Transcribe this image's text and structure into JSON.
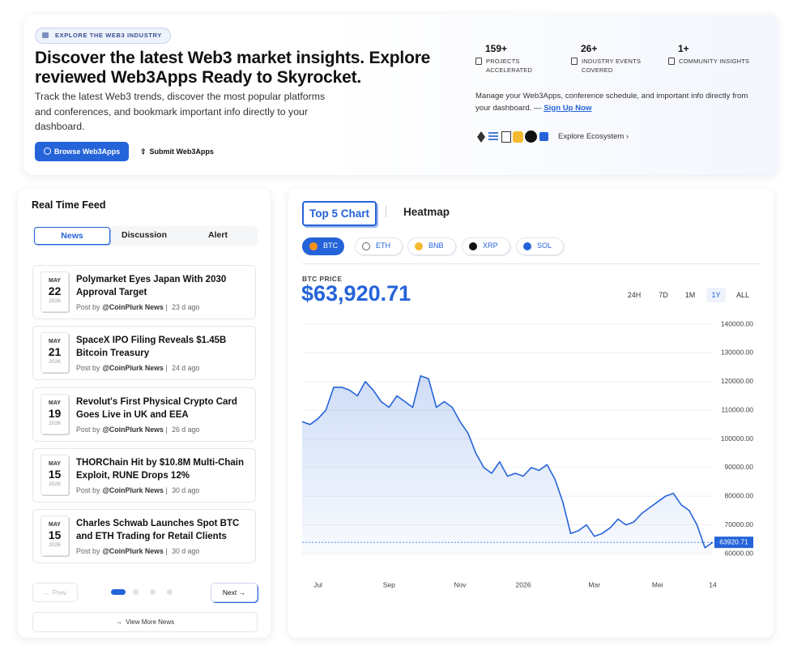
{
  "hero": {
    "badge": "EXPLORE THE WEB3 INDUSTRY",
    "title": "Discover the latest Web3 market insights. Explore reviewed Web3Apps Ready to Skyrocket.",
    "description": "Track the latest Web3 trends, discover the most popular platforms and conferences, and bookmark important info directly to your dashboard.",
    "primary_button": "Browse Web3Apps",
    "secondary_button": "Submit Web3Apps"
  },
  "stats": [
    {
      "value": "159+",
      "label": "PROJECTS ACCELERATED"
    },
    {
      "value": "26+",
      "label": "INDUSTRY EVENTS COVERED"
    },
    {
      "value": "1+",
      "label": "COMMUNITY INSIGHTS"
    }
  ],
  "manage_text": "Manage your Web3Apps, conference schedule, and important info directly from your dashboard. —",
  "signup": "Sign Up Now",
  "explore": "Explore Ecosystem",
  "feed": {
    "title": "Real Time Feed",
    "tabs": [
      "News",
      "Discussion",
      "Alert"
    ],
    "items": [
      {
        "month": "MAY",
        "day": "22",
        "year": "2026",
        "title": "Polymarket Eyes Japan With 2030 Approval Target",
        "prefix": "Post by",
        "author": "@CoinPlurk News",
        "age": "23 d ago"
      },
      {
        "month": "MAY",
        "day": "21",
        "year": "2026",
        "title": "SpaceX IPO Filing Reveals $1.45B Bitcoin Treasury",
        "prefix": "Post by",
        "author": "@CoinPlurk News",
        "age": "24 d ago"
      },
      {
        "month": "MAY",
        "day": "19",
        "year": "2026",
        "title": "Revolut's First Physical Crypto Card Goes Live in UK and EEA",
        "prefix": "Post by",
        "author": "@CoinPlurk News",
        "age": "26 d ago"
      },
      {
        "month": "MAY",
        "day": "15",
        "year": "2026",
        "title": "THORChain Hit by $10.8M Multi-Chain Exploit, RUNE Drops 12%",
        "prefix": "Post by",
        "author": "@CoinPlurk News",
        "age": "30 d ago"
      },
      {
        "month": "MAY",
        "day": "15",
        "year": "2026",
        "title": "Charles Schwab Launches Spot BTC and ETH Trading for Retail Clients",
        "prefix": "Post by",
        "author": "@CoinPlurk News",
        "age": "30 d ago"
      }
    ],
    "prev": "Prev",
    "next": "Next",
    "view_more": "View More News"
  },
  "chart_tabs": [
    "Top 5 Chart",
    "Heatmap"
  ],
  "coins": [
    "BTC",
    "ETH",
    "BNB",
    "XRP",
    "SOL"
  ],
  "price_caption": "BTC PRICE",
  "price": "$63,920.71",
  "ranges": [
    "24H",
    "7D",
    "1M",
    "1Y",
    "ALL"
  ],
  "chart_data": {
    "type": "line",
    "categories": [
      null,
      null,
      "Jul",
      null,
      null,
      null,
      null,
      null,
      null,
      null,
      null,
      "Sep",
      null,
      null,
      null,
      null,
      null,
      null,
      null,
      null,
      "Nov",
      null,
      null,
      null,
      null,
      null,
      null,
      null,
      "2026",
      null,
      null,
      null,
      null,
      null,
      null,
      null,
      null,
      "Mar",
      null,
      null,
      null,
      null,
      null,
      null,
      null,
      "Mei",
      null,
      null,
      null,
      null,
      null,
      null,
      "14"
    ],
    "series": [
      {
        "name": "BTC",
        "color": "#2563d9",
        "values": [
          106000,
          105000,
          107000,
          110000,
          118000,
          118000,
          117000,
          115000,
          120000,
          117000,
          113000,
          111000,
          115000,
          113000,
          111000,
          122000,
          121000,
          111000,
          113000,
          111000,
          106000,
          102000,
          95000,
          90000,
          88000,
          92000,
          87000,
          88000,
          87000,
          90000,
          89000,
          91000,
          86000,
          78000,
          67000,
          68000,
          70000,
          66000,
          67000,
          69000,
          72000,
          70000,
          71000,
          74000,
          76000,
          78000,
          80000,
          81000,
          77000,
          75000,
          70000,
          62000,
          63920.71
        ]
      }
    ],
    "last_label": "63920.71",
    "ylim": [
      60000,
      140000
    ],
    "yticks": [
      {
        "value": 60000,
        "label": "60000.00"
      },
      {
        "value": 70000,
        "label": "70000.00"
      },
      {
        "value": 80000,
        "label": "80000.00"
      },
      {
        "value": 90000,
        "label": "90000.00"
      },
      {
        "value": 100000,
        "label": "100000.00"
      },
      {
        "value": 110000,
        "label": "110000.00"
      },
      {
        "value": 120000,
        "label": "120000.00"
      },
      {
        "value": 130000,
        "label": "130000.00"
      },
      {
        "value": 140000,
        "label": "140000.00"
      }
    ],
    "grid": true
  }
}
